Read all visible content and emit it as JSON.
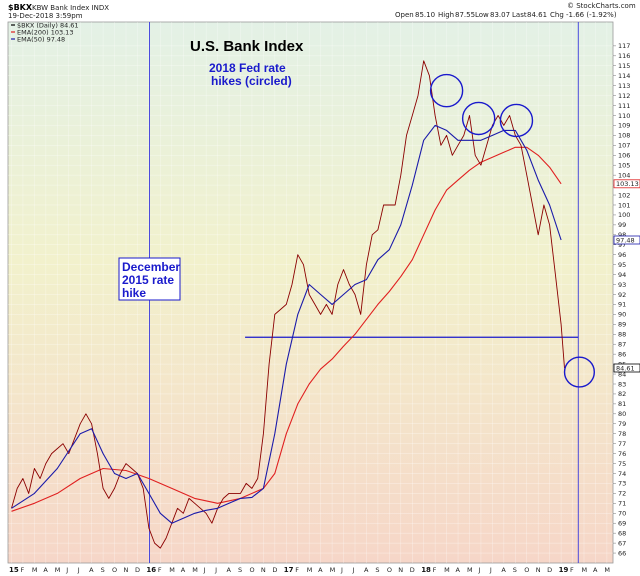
{
  "header": {
    "symbol": "$BKX",
    "name": "KBW Bank Index  INDX",
    "date": "19-Dec-2018 3:59pm",
    "open_label": "Open",
    "open": "85.10",
    "high_label": "High",
    "high": "87.55",
    "low_label": "Low",
    "low": "83.07",
    "last_label": "Last",
    "last": "84.61",
    "chg_label": "Chg",
    "chg": "-1.66 (-1.92%)",
    "watermark": "© StockCharts.com"
  },
  "legend": [
    {
      "text": "$BKX (Daily) 84.61",
      "color": "#000000"
    },
    {
      "text": "EMA(200) 103.13",
      "color": "#e02020"
    },
    {
      "text": "EMA(50) 97.48",
      "color": "#1a1aaa"
    }
  ],
  "colors": {
    "price": "#8b0000",
    "ema200": "#e02020",
    "ema50": "#1a1aaa",
    "annotation": "#1a1acc",
    "bg_top": "#e3f1e6",
    "bg_mid": "#f2f1cc",
    "bg_bottom": "#f6d6c8"
  },
  "badges": {
    "ema200": "103.13",
    "ema50": "97.48",
    "last": "84.61"
  },
  "chart_data": {
    "type": "line",
    "title": "U.S. Bank Index",
    "annotations": [
      {
        "text": [
          "2018 Fed rate",
          "hikes (circled)"
        ]
      },
      {
        "text": [
          "December",
          "2015 rate",
          "hike"
        ]
      }
    ],
    "ylim": [
      66,
      117
    ],
    "yticks": [
      66,
      67,
      68,
      69,
      70,
      71,
      72,
      73,
      74,
      75,
      76,
      77,
      78,
      79,
      80,
      81,
      82,
      83,
      84,
      85,
      86,
      87,
      88,
      89,
      90,
      91,
      92,
      93,
      94,
      95,
      96,
      97,
      98,
      99,
      100,
      101,
      102,
      103,
      104,
      105,
      106,
      107,
      108,
      109,
      110,
      111,
      112,
      113,
      114,
      115,
      116,
      117
    ],
    "xlim": [
      0,
      49.3
    ],
    "xticks": [
      {
        "m": 0,
        "label": "15",
        "year": true
      },
      {
        "m": 1,
        "label": "F"
      },
      {
        "m": 2,
        "label": "M"
      },
      {
        "m": 3,
        "label": "A"
      },
      {
        "m": 4,
        "label": "M"
      },
      {
        "m": 5,
        "label": "J"
      },
      {
        "m": 6,
        "label": "J"
      },
      {
        "m": 7,
        "label": "A"
      },
      {
        "m": 8,
        "label": "S"
      },
      {
        "m": 9,
        "label": "O"
      },
      {
        "m": 10,
        "label": "N"
      },
      {
        "m": 11,
        "label": "D"
      },
      {
        "m": 12,
        "label": "16",
        "year": true
      },
      {
        "m": 13,
        "label": "F"
      },
      {
        "m": 14,
        "label": "M"
      },
      {
        "m": 15,
        "label": "A"
      },
      {
        "m": 16,
        "label": "M"
      },
      {
        "m": 17,
        "label": "J"
      },
      {
        "m": 18,
        "label": "J"
      },
      {
        "m": 19,
        "label": "A"
      },
      {
        "m": 20,
        "label": "S"
      },
      {
        "m": 21,
        "label": "O"
      },
      {
        "m": 22,
        "label": "N"
      },
      {
        "m": 23,
        "label": "D"
      },
      {
        "m": 24,
        "label": "17",
        "year": true
      },
      {
        "m": 25,
        "label": "F"
      },
      {
        "m": 26,
        "label": "M"
      },
      {
        "m": 27,
        "label": "A"
      },
      {
        "m": 28,
        "label": "M"
      },
      {
        "m": 29,
        "label": "J"
      },
      {
        "m": 30,
        "label": "J"
      },
      {
        "m": 31,
        "label": "A"
      },
      {
        "m": 32,
        "label": "S"
      },
      {
        "m": 33,
        "label": "O"
      },
      {
        "m": 34,
        "label": "N"
      },
      {
        "m": 35,
        "label": "D"
      },
      {
        "m": 36,
        "label": "18",
        "year": true
      },
      {
        "m": 37,
        "label": "F"
      },
      {
        "m": 38,
        "label": "M"
      },
      {
        "m": 39,
        "label": "A"
      },
      {
        "m": 40,
        "label": "M"
      },
      {
        "m": 41,
        "label": "J"
      },
      {
        "m": 42,
        "label": "J"
      },
      {
        "m": 43,
        "label": "A"
      },
      {
        "m": 44,
        "label": "S"
      },
      {
        "m": 45,
        "label": "O"
      },
      {
        "m": 46,
        "label": "N"
      },
      {
        "m": 47,
        "label": "D"
      },
      {
        "m": 48,
        "label": "19",
        "year": true
      },
      {
        "m": 49,
        "label": "F"
      },
      {
        "m": 50,
        "label": "M"
      },
      {
        "m": 51,
        "label": "A"
      },
      {
        "m": 52,
        "label": "M"
      },
      {
        "m": 53,
        "label": "J"
      }
    ],
    "series": [
      {
        "key": "price",
        "points": [
          [
            0,
            70.5
          ],
          [
            0.5,
            72.5
          ],
          [
            1,
            73.5
          ],
          [
            1.5,
            72
          ],
          [
            2,
            74.5
          ],
          [
            2.5,
            73.5
          ],
          [
            3,
            75
          ],
          [
            3.5,
            76
          ],
          [
            4,
            76.5
          ],
          [
            4.5,
            77
          ],
          [
            5,
            76
          ],
          [
            5.5,
            77.5
          ],
          [
            6,
            79
          ],
          [
            6.5,
            80
          ],
          [
            7,
            79
          ],
          [
            7.5,
            76
          ],
          [
            8,
            72.5
          ],
          [
            8.5,
            71.5
          ],
          [
            9,
            72.5
          ],
          [
            9.5,
            74
          ],
          [
            10,
            75
          ],
          [
            10.5,
            74.5
          ],
          [
            11,
            74
          ],
          [
            11.5,
            72.5
          ],
          [
            12,
            68.5
          ],
          [
            12.5,
            67
          ],
          [
            13,
            66.5
          ],
          [
            13.5,
            67.5
          ],
          [
            14,
            69
          ],
          [
            14.5,
            70.5
          ],
          [
            15,
            70
          ],
          [
            15.5,
            71.5
          ],
          [
            16,
            71
          ],
          [
            16.5,
            70.5
          ],
          [
            17,
            70
          ],
          [
            17.5,
            69
          ],
          [
            18,
            70.5
          ],
          [
            18.5,
            71.5
          ],
          [
            19,
            72
          ],
          [
            19.5,
            72
          ],
          [
            20,
            72
          ],
          [
            20.5,
            73
          ],
          [
            21,
            72.5
          ],
          [
            21.5,
            73.5
          ],
          [
            22,
            78
          ],
          [
            22.5,
            85
          ],
          [
            23,
            90
          ],
          [
            23.5,
            90.5
          ],
          [
            24,
            91
          ],
          [
            24.5,
            93
          ],
          [
            25,
            96
          ],
          [
            25.5,
            95
          ],
          [
            26,
            92
          ],
          [
            26.5,
            91
          ],
          [
            27,
            90
          ],
          [
            27.5,
            91
          ],
          [
            28,
            90
          ],
          [
            28.5,
            93
          ],
          [
            29,
            94.5
          ],
          [
            29.5,
            93
          ],
          [
            30,
            92
          ],
          [
            30.5,
            90
          ],
          [
            31,
            95
          ],
          [
            31.5,
            98
          ],
          [
            32,
            98.5
          ],
          [
            32.5,
            101
          ],
          [
            33,
            101
          ],
          [
            33.5,
            101
          ],
          [
            34,
            104
          ],
          [
            34.5,
            108
          ],
          [
            35,
            110
          ],
          [
            35.5,
            112
          ],
          [
            36,
            115.5
          ],
          [
            36.5,
            114
          ],
          [
            37,
            110
          ],
          [
            37.5,
            107
          ],
          [
            38,
            108
          ],
          [
            38.5,
            106
          ],
          [
            39,
            107
          ],
          [
            39.5,
            108
          ],
          [
            40,
            110
          ],
          [
            40.5,
            106
          ],
          [
            41,
            105
          ],
          [
            41.5,
            107
          ],
          [
            42,
            109
          ],
          [
            42.5,
            110
          ],
          [
            43,
            109
          ],
          [
            43.5,
            110
          ],
          [
            44,
            108
          ],
          [
            44.5,
            107
          ],
          [
            45,
            104
          ],
          [
            45.5,
            101
          ],
          [
            46,
            98
          ],
          [
            46.5,
            101
          ],
          [
            47,
            99
          ],
          [
            47.5,
            94
          ],
          [
            48,
            89
          ],
          [
            48.3,
            84.6
          ]
        ]
      },
      {
        "key": "ema200",
        "points": [
          [
            0,
            70.2
          ],
          [
            2,
            71
          ],
          [
            4,
            72
          ],
          [
            6,
            73.5
          ],
          [
            8,
            74.5
          ],
          [
            10,
            74.3
          ],
          [
            12,
            73.5
          ],
          [
            14,
            72.5
          ],
          [
            16,
            71.5
          ],
          [
            18,
            71
          ],
          [
            20,
            71.5
          ],
          [
            22,
            72.5
          ],
          [
            23,
            74
          ],
          [
            24,
            78
          ],
          [
            25,
            81
          ],
          [
            26,
            83
          ],
          [
            27,
            84.5
          ],
          [
            28,
            85.5
          ],
          [
            29,
            86.8
          ],
          [
            30,
            88
          ],
          [
            31,
            89.5
          ],
          [
            32,
            91
          ],
          [
            33,
            92.3
          ],
          [
            34,
            93.8
          ],
          [
            35,
            95.5
          ],
          [
            36,
            98
          ],
          [
            37,
            100.5
          ],
          [
            38,
            102.5
          ],
          [
            39,
            103.5
          ],
          [
            40,
            104.5
          ],
          [
            41,
            105.3
          ],
          [
            42,
            105.8
          ],
          [
            43,
            106.3
          ],
          [
            44,
            106.8
          ],
          [
            45,
            106.8
          ],
          [
            46,
            106
          ],
          [
            47,
            104.8
          ],
          [
            48,
            103.13
          ]
        ]
      },
      {
        "key": "ema50",
        "points": [
          [
            0,
            70.5
          ],
          [
            2,
            72
          ],
          [
            4,
            74.5
          ],
          [
            6,
            78
          ],
          [
            7,
            78.5
          ],
          [
            8,
            76
          ],
          [
            9,
            74
          ],
          [
            10,
            73.5
          ],
          [
            11,
            74
          ],
          [
            12,
            72
          ],
          [
            13,
            70
          ],
          [
            14,
            69
          ],
          [
            15,
            69.5
          ],
          [
            16,
            70
          ],
          [
            17,
            70.3
          ],
          [
            18,
            70.5
          ],
          [
            19,
            71
          ],
          [
            20,
            71.5
          ],
          [
            21,
            71.6
          ],
          [
            22,
            72.5
          ],
          [
            23,
            78
          ],
          [
            24,
            85
          ],
          [
            25,
            90
          ],
          [
            26,
            93
          ],
          [
            27,
            92
          ],
          [
            28,
            91
          ],
          [
            29,
            92
          ],
          [
            30,
            93
          ],
          [
            31,
            93.5
          ],
          [
            32,
            95.5
          ],
          [
            33,
            96.5
          ],
          [
            34,
            99
          ],
          [
            35,
            103
          ],
          [
            36,
            107.5
          ],
          [
            37,
            109
          ],
          [
            38,
            108.5
          ],
          [
            39,
            107.5
          ],
          [
            40,
            107.5
          ],
          [
            41,
            107.5
          ],
          [
            42,
            108
          ],
          [
            43,
            108.5
          ],
          [
            44,
            108.5
          ],
          [
            45,
            106.5
          ],
          [
            46,
            103.5
          ],
          [
            47,
            101
          ],
          [
            48,
            97.48
          ]
        ]
      }
    ],
    "hlines": [
      {
        "y": 87.7,
        "x0": 20.4,
        "x1": 49.5
      }
    ],
    "vlines": [
      {
        "x": 12.05
      },
      {
        "x": 49.5
      }
    ],
    "circles": [
      {
        "x": 38.0,
        "y": 112.5,
        "r": 1.4
      },
      {
        "x": 40.8,
        "y": 109.7,
        "r": 1.4
      },
      {
        "x": 44.1,
        "y": 109.5,
        "r": 1.4
      },
      {
        "x": 49.6,
        "y": 84.2,
        "r": 1.3
      }
    ]
  }
}
